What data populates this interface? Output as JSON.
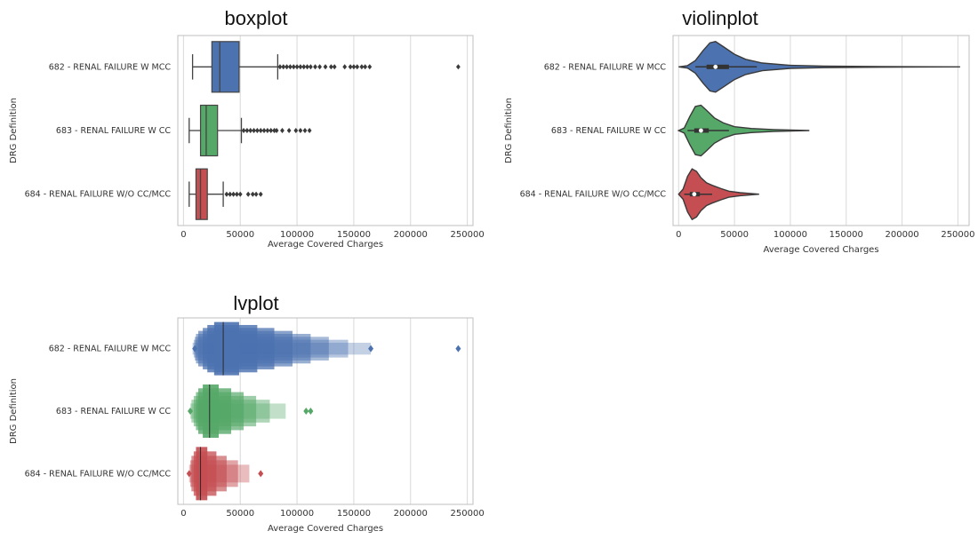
{
  "chart_data": [
    {
      "type": "box",
      "title": "boxplot",
      "xlabel": "Average Covered Charges",
      "ylabel": "DRG Definition",
      "xlim": [
        -5000,
        255000
      ],
      "xticks": [
        0,
        50000,
        100000,
        150000,
        200000,
        250000
      ],
      "grid": "vertical",
      "categories": [
        "682 - RENAL FAILURE W MCC",
        "683 - RENAL FAILURE W CC",
        "684 - RENAL FAILURE W/O CC/MCC"
      ],
      "colors": [
        "#4c72b0",
        "#55a868",
        "#c44e52"
      ],
      "boxes": [
        {
          "whislo": 8000,
          "q1": 25000,
          "med": 32000,
          "q3": 49000,
          "whishi": 83000,
          "fliers": [
            85000,
            88000,
            91000,
            94000,
            97000,
            100000,
            103000,
            106000,
            109000,
            112000,
            116000,
            120000,
            125000,
            130000,
            133000,
            142000,
            147000,
            150000,
            153000,
            157000,
            160000,
            164000,
            242000
          ]
        },
        {
          "whislo": 5000,
          "q1": 15000,
          "med": 20000,
          "q3": 30000,
          "whishi": 51000,
          "fliers": [
            53000,
            56000,
            59000,
            62000,
            65000,
            68000,
            71000,
            74000,
            77000,
            80000,
            82000,
            87000,
            93000,
            99000,
            103000,
            107000,
            111000
          ]
        },
        {
          "whislo": 5000,
          "q1": 11000,
          "med": 15000,
          "q3": 21000,
          "whishi": 35000,
          "fliers": [
            38000,
            41000,
            44000,
            47000,
            50000,
            57000,
            61000,
            64000,
            68000
          ]
        }
      ]
    },
    {
      "type": "violin",
      "title": "violinplot",
      "xlabel": "Average Covered Charges",
      "ylabel": "DRG Definition",
      "xlim": [
        -5000,
        260000
      ],
      "xticks": [
        0,
        50000,
        100000,
        150000,
        200000,
        250000
      ],
      "grid": "vertical",
      "categories": [
        "682 - RENAL FAILURE W MCC",
        "683 - RENAL FAILURE W CC",
        "684 - RENAL FAILURE W/O CC/MCC"
      ],
      "colors": [
        "#4c72b0",
        "#55a868",
        "#c44e52"
      ],
      "violins": [
        {
          "min": 0,
          "max": 252000,
          "q1": 25000,
          "med": 33000,
          "q3": 45000,
          "whislo": 15000,
          "whishi": 70000,
          "density": [
            [
              0,
              0
            ],
            [
              8000,
              0.05
            ],
            [
              15000,
              0.25
            ],
            [
              22000,
              0.65
            ],
            [
              28000,
              0.95
            ],
            [
              33000,
              1.0
            ],
            [
              40000,
              0.8
            ],
            [
              50000,
              0.5
            ],
            [
              60000,
              0.3
            ],
            [
              75000,
              0.15
            ],
            [
              100000,
              0.06
            ],
            [
              130000,
              0.03
            ],
            [
              180000,
              0.015
            ],
            [
              252000,
              0
            ]
          ]
        },
        {
          "min": 0,
          "max": 117000,
          "q1": 14000,
          "med": 20000,
          "q3": 27000,
          "whislo": 8000,
          "whishi": 45000,
          "density": [
            [
              0,
              0
            ],
            [
              5000,
              0.1
            ],
            [
              10000,
              0.55
            ],
            [
              15000,
              0.95
            ],
            [
              20000,
              1.0
            ],
            [
              25000,
              0.8
            ],
            [
              32000,
              0.5
            ],
            [
              40000,
              0.3
            ],
            [
              50000,
              0.15
            ],
            [
              65000,
              0.08
            ],
            [
              85000,
              0.04
            ],
            [
              117000,
              0
            ]
          ]
        },
        {
          "min": 0,
          "max": 72000,
          "q1": 10000,
          "med": 14000,
          "q3": 19000,
          "whislo": 5000,
          "whishi": 30000,
          "density": [
            [
              0,
              0
            ],
            [
              4000,
              0.2
            ],
            [
              8000,
              0.7
            ],
            [
              12000,
              1.0
            ],
            [
              16000,
              0.9
            ],
            [
              20000,
              0.65
            ],
            [
              25000,
              0.45
            ],
            [
              30000,
              0.35
            ],
            [
              38000,
              0.22
            ],
            [
              45000,
              0.12
            ],
            [
              55000,
              0.06
            ],
            [
              72000,
              0
            ]
          ]
        }
      ]
    },
    {
      "type": "lvplot",
      "title": "lvplot",
      "xlabel": "Average Covered Charges",
      "ylabel": "DRG Definition",
      "xlim": [
        -5000,
        255000
      ],
      "xticks": [
        0,
        50000,
        100000,
        150000,
        200000,
        250000
      ],
      "grid": "vertical",
      "categories": [
        "682 - RENAL FAILURE W MCC",
        "683 - RENAL FAILURE W CC",
        "684 - RENAL FAILURE W/O CC/MCC"
      ],
      "colors": [
        "#4c72b0",
        "#55a868",
        "#c44e52"
      ],
      "boxes": [
        {
          "median": 35000,
          "levels": [
            [
              27000,
              49000
            ],
            [
              21000,
              65000
            ],
            [
              17000,
              80000
            ],
            [
              13000,
              96000
            ],
            [
              11000,
              112000
            ],
            [
              10000,
              128000
            ],
            [
              9000,
              145000
            ],
            [
              8000,
              165000
            ]
          ],
          "outliers": [
            10000,
            165000,
            242000
          ]
        },
        {
          "median": 23000,
          "levels": [
            [
              17000,
              31000
            ],
            [
              13000,
              42000
            ],
            [
              11000,
              53000
            ],
            [
              9000,
              64000
            ],
            [
              7000,
              76000
            ],
            [
              6000,
              90000
            ]
          ],
          "outliers": [
            6000,
            108000,
            112000
          ]
        },
        {
          "median": 15000,
          "levels": [
            [
              11000,
              21000
            ],
            [
              9000,
              29000
            ],
            [
              7000,
              38000
            ],
            [
              6000,
              48000
            ],
            [
              5000,
              58000
            ]
          ],
          "outliers": [
            5000,
            68000
          ]
        }
      ]
    }
  ]
}
